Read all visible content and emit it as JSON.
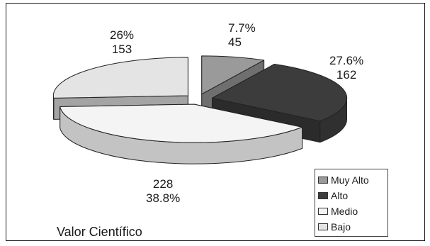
{
  "chart_data": {
    "type": "pie",
    "title": "Valor Científico",
    "categories": [
      "Muy Alto",
      "Alto",
      "Medio",
      "Bajo"
    ],
    "values": [
      45,
      162,
      228,
      153
    ],
    "percent_labels": [
      "7.7%",
      "27.6%",
      "38.8%",
      "26%"
    ],
    "value_labels": [
      "45",
      "162",
      "228",
      "153"
    ],
    "legend_position": "bottom-right",
    "exploded": true,
    "three_d": true
  },
  "colors": {
    "Muy Alto": "#9a9a9a",
    "Alto": "#3c3c3c",
    "Medio": "#f4f4f4",
    "Bajo": "#e4e4e4"
  }
}
